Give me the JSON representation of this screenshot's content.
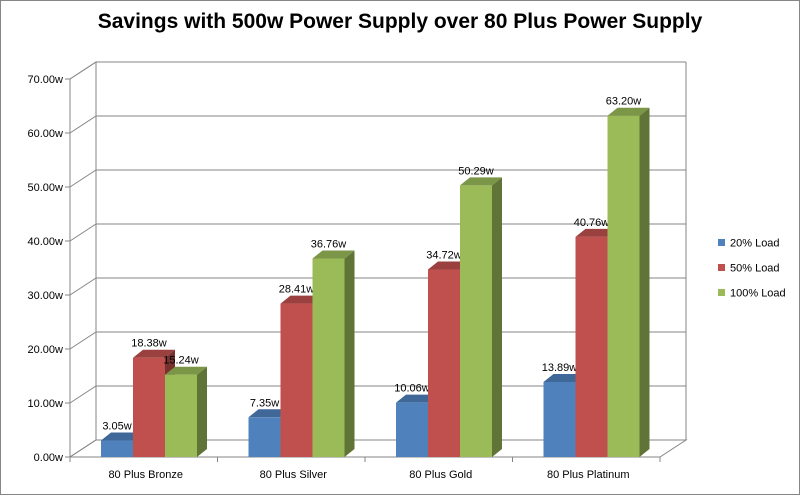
{
  "chart_data": {
    "type": "bar",
    "title": "Savings with 500w Power Supply over 80 Plus Power Supply",
    "xlabel": "",
    "ylabel": "",
    "categories": [
      "80 Plus Bronze",
      "80 Plus Silver",
      "80 Plus Gold",
      "80 Plus Platinum"
    ],
    "series": [
      {
        "name": "20% Load",
        "values": [
          3.05,
          7.35,
          10.06,
          13.89
        ],
        "labels": [
          "3.05w",
          "7.35w",
          "10.06w",
          "13.89w"
        ],
        "color": "#4F81BD"
      },
      {
        "name": "50% Load",
        "values": [
          18.38,
          28.41,
          34.72,
          40.76
        ],
        "labels": [
          "18.38w",
          "28.41w",
          "34.72w",
          "40.76w"
        ],
        "color": "#C0504D"
      },
      {
        "name": "100% Load",
        "values": [
          15.24,
          36.76,
          50.29,
          63.2
        ],
        "labels": [
          "15.24w",
          "36.76w",
          "50.29w",
          "63.20w"
        ],
        "color": "#9BBB59"
      }
    ],
    "ylim": [
      0,
      70
    ],
    "yticks": [
      0,
      10,
      20,
      30,
      40,
      50,
      60,
      70
    ],
    "ytick_labels": [
      "0.00w",
      "10.00w",
      "20.00w",
      "30.00w",
      "40.00w",
      "50.00w",
      "60.00w",
      "70.00w"
    ],
    "grid": true,
    "legend_position": "right",
    "style": "3d-clustered-column"
  }
}
